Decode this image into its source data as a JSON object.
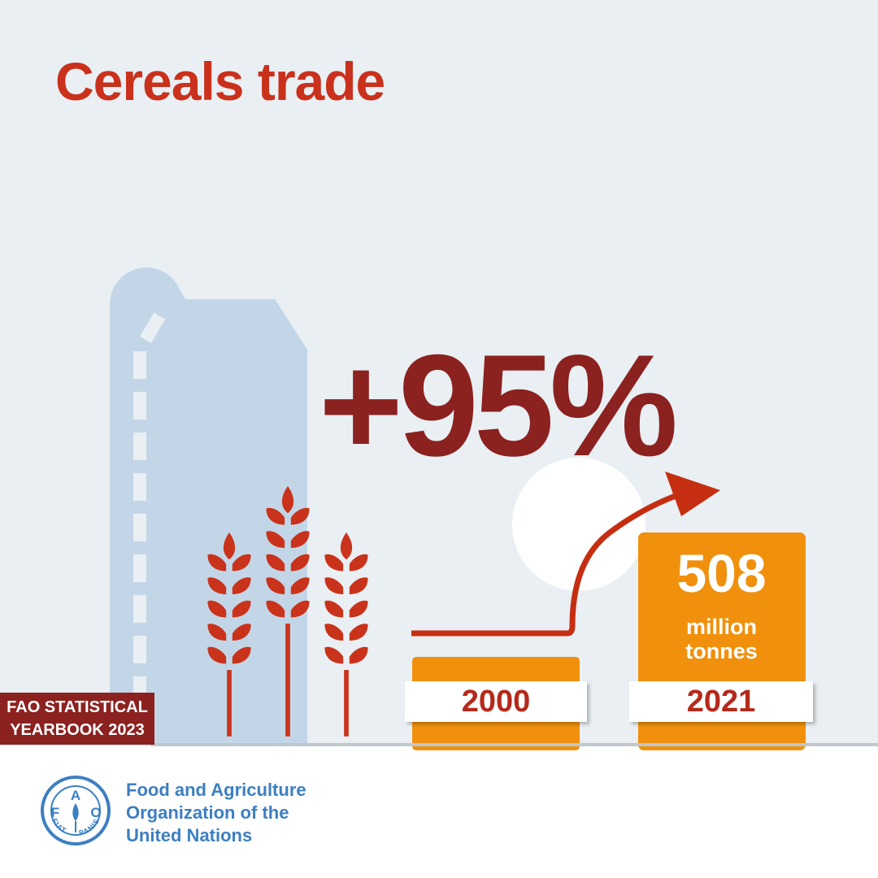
{
  "title": "Cereals trade",
  "headline_stat": "+95%",
  "bars": [
    {
      "year": "2000",
      "value": null
    },
    {
      "year": "2021",
      "value": "508",
      "unit_line1": "million",
      "unit_line2": "tonnes"
    }
  ],
  "badge": {
    "line1": "FAO STATISTICAL",
    "line2": "YEARBOOK 2023"
  },
  "organization": {
    "line1": "Food and Agriculture",
    "line2": "Organization of the",
    "line3": "United Nations"
  },
  "emblem": {
    "top_letters": "A",
    "left_letter": "F",
    "right_letter": "O",
    "motto_left": "FIAT",
    "motto_right": "PANIS"
  },
  "colors": {
    "background": "#e9eff3",
    "title": "#c9311c",
    "headline": "#8b2220",
    "bar": "#f0900c",
    "arrow": "#c52e10",
    "wheat": "#c9331b",
    "silo": "#c3d6e8",
    "brand_blue": "#3d7fc1"
  },
  "icons": [
    "grain-silo-icon",
    "wheat-stalk-icon",
    "sun-icon",
    "growth-arrow-icon",
    "fao-emblem-icon"
  ]
}
